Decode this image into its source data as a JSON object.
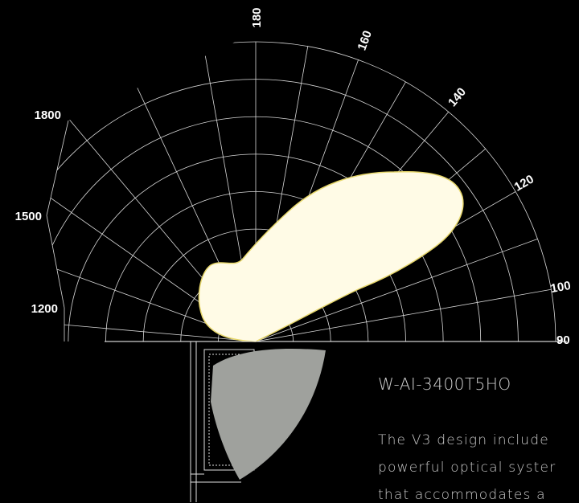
{
  "diagram": {
    "angle_labels": [
      "180",
      "160",
      "140",
      "120",
      "100",
      "90"
    ],
    "radius_labels": [
      "1800",
      "1500",
      "1200"
    ],
    "product_name": "W-AI-3400T5HO",
    "description_lines": [
      "The V3 design include",
      "powerful optical syster",
      "that accommodates a"
    ]
  }
}
